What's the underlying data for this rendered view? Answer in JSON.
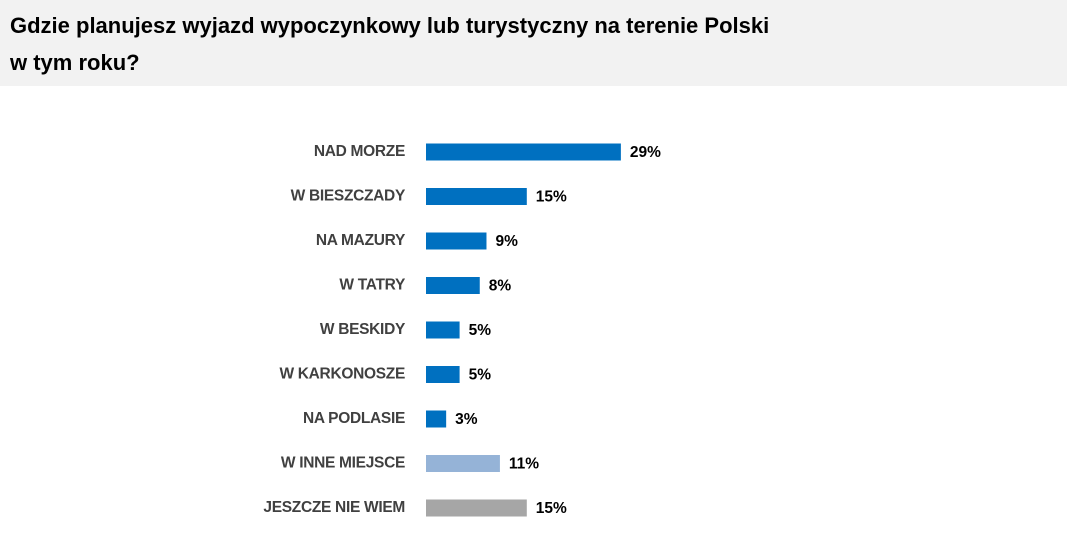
{
  "chart_data": {
    "type": "bar",
    "orientation": "horizontal",
    "title": [
      "Gdzie planujesz wyjazd wypoczynkowy lub turystyczny na terenie Polski",
      "w tym roku?"
    ],
    "categories": [
      "NAD MORZE",
      "W BIESZCZADY",
      "NA MAZURY",
      "W TATRY",
      "W BESKIDY",
      "W KARKONOSZE",
      "NA PODLASIE",
      "W INNE MIEJSCE",
      "JESZCZE NIE WIEM"
    ],
    "values": [
      29,
      15,
      9,
      8,
      5,
      5,
      3,
      11,
      15
    ],
    "value_labels": [
      "29%",
      "15%",
      "9%",
      "8%",
      "5%",
      "5%",
      "3%",
      "11%",
      "15%"
    ],
    "colors": [
      "#0070c0",
      "#0070c0",
      "#0070c0",
      "#0070c0",
      "#0070c0",
      "#0070c0",
      "#0070c0",
      "#95b3d7",
      "#a6a6a6"
    ]
  }
}
